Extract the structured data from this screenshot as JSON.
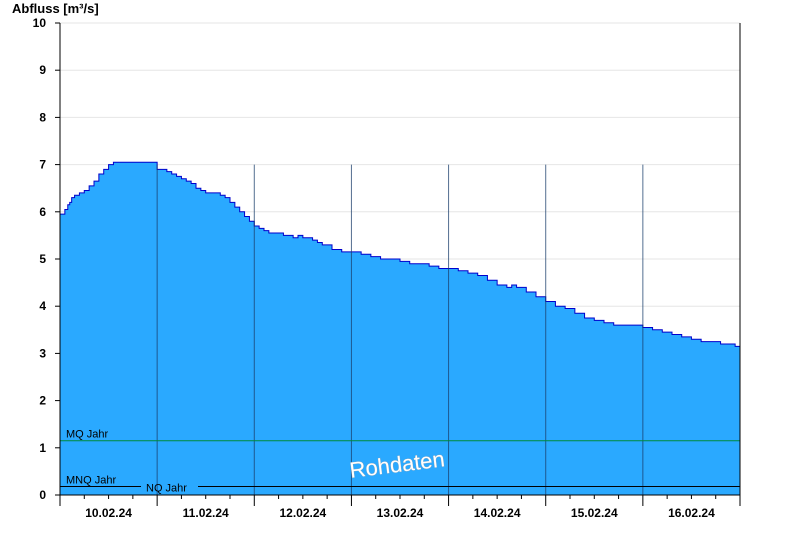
{
  "chart_data": {
    "type": "area",
    "title": "",
    "ylabel": "Abfluss [m³/s]",
    "xlabel": "",
    "ylim": [
      0,
      10
    ],
    "yticks": [
      "0",
      "1",
      "2",
      "3",
      "4",
      "5",
      "6",
      "7",
      "8",
      "9",
      "10"
    ],
    "xlim": [
      0,
      7
    ],
    "xticks": [
      "10.02.24",
      "11.02.24",
      "12.02.24",
      "13.02.24",
      "14.02.24",
      "15.02.24",
      "16.02.24"
    ],
    "grid": true,
    "series": [
      {
        "color": "#2aa9ff",
        "line_color": "#0000cc",
        "x": [
          0,
          0.05,
          0.08,
          0.1,
          0.12,
          0.15,
          0.2,
          0.25,
          0.3,
          0.35,
          0.4,
          0.45,
          0.5,
          0.55,
          0.6,
          0.65,
          0.7,
          0.75,
          0.8,
          0.9,
          1.0,
          1.05,
          1.1,
          1.15,
          1.2,
          1.25,
          1.3,
          1.35,
          1.4,
          1.45,
          1.5,
          1.55,
          1.6,
          1.65,
          1.7,
          1.75,
          1.8,
          1.85,
          1.9,
          1.95,
          2.0,
          2.05,
          2.1,
          2.15,
          2.2,
          2.3,
          2.4,
          2.45,
          2.5,
          2.55,
          2.6,
          2.65,
          2.7,
          2.8,
          2.9,
          2.95,
          3.0,
          3.1,
          3.2,
          3.3,
          3.4,
          3.5,
          3.6,
          3.7,
          3.8,
          3.9,
          4.0,
          4.1,
          4.2,
          4.3,
          4.4,
          4.5,
          4.55,
          4.6,
          4.65,
          4.7,
          4.8,
          4.9,
          5.0,
          5.1,
          5.2,
          5.3,
          5.4,
          5.5,
          5.6,
          5.7,
          5.8,
          5.9,
          6.0,
          6.1,
          6.2,
          6.3,
          6.4,
          6.5,
          6.6,
          6.7,
          6.8,
          6.9,
          6.95,
          7.0
        ],
        "values": [
          5.95,
          6.05,
          6.15,
          6.2,
          6.3,
          6.35,
          6.4,
          6.45,
          6.55,
          6.65,
          6.8,
          6.9,
          7.0,
          7.05,
          7.05,
          7.05,
          7.05,
          7.05,
          7.05,
          7.05,
          6.9,
          6.9,
          6.85,
          6.8,
          6.75,
          6.7,
          6.65,
          6.6,
          6.5,
          6.45,
          6.4,
          6.4,
          6.4,
          6.35,
          6.3,
          6.2,
          6.1,
          6.0,
          5.9,
          5.8,
          5.7,
          5.65,
          5.6,
          5.55,
          5.55,
          5.5,
          5.45,
          5.5,
          5.45,
          5.45,
          5.4,
          5.35,
          5.3,
          5.2,
          5.15,
          5.15,
          5.15,
          5.1,
          5.05,
          5.0,
          5.0,
          4.95,
          4.9,
          4.9,
          4.85,
          4.8,
          4.8,
          4.75,
          4.7,
          4.65,
          4.55,
          4.45,
          4.45,
          4.4,
          4.45,
          4.4,
          4.3,
          4.2,
          4.1,
          4.0,
          3.95,
          3.85,
          3.75,
          3.7,
          3.65,
          3.6,
          3.6,
          3.6,
          3.55,
          3.5,
          3.45,
          3.4,
          3.35,
          3.3,
          3.25,
          3.25,
          3.2,
          3.2,
          3.15,
          3.1
        ]
      }
    ],
    "reference_lines": [
      {
        "label": "MQ Jahr",
        "value": 1.15,
        "color": "#008a3a"
      },
      {
        "label": "MNQ Jahr",
        "value": 0.18,
        "color": "#000000"
      },
      {
        "label": "NQ Jahr",
        "value": 0.18,
        "color": "#000000"
      }
    ],
    "day_separator_color": "#1a3d6b",
    "watermark": "Rohdaten"
  }
}
